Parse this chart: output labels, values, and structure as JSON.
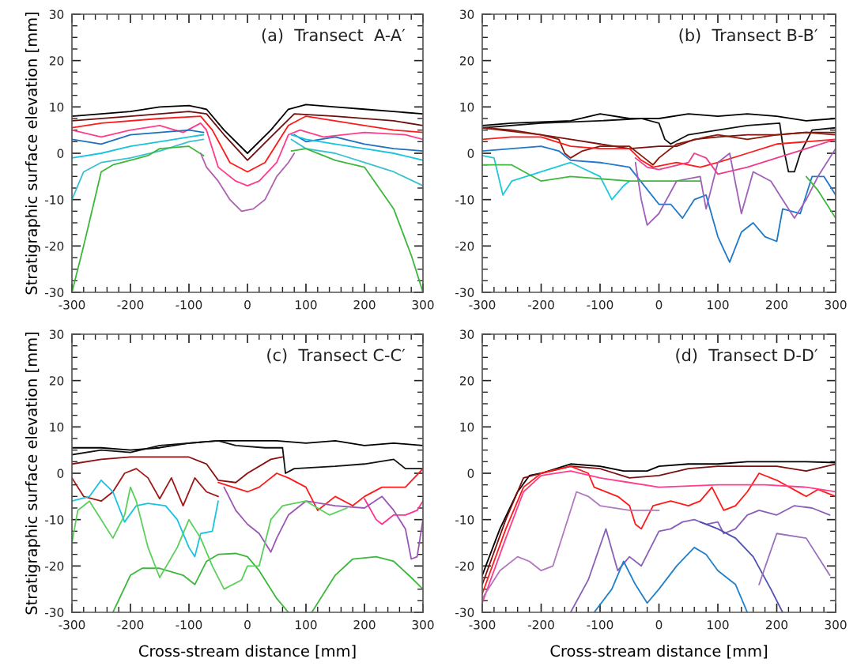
{
  "chart_data": [
    {
      "type": "line",
      "title": "(a)  Transect  A-A′",
      "ylabel": "Stratigraphic surface elevation [mm]",
      "xlim": [
        -300,
        300
      ],
      "ylim": [
        -30,
        30
      ],
      "xticks": [
        -300,
        -200,
        -100,
        0,
        100,
        200,
        300
      ],
      "yticks": [
        -30,
        -20,
        -10,
        0,
        10,
        20,
        30
      ],
      "series": [
        {
          "color": "#000000",
          "x": [
            -300,
            -250,
            -200,
            -150,
            -100,
            -70,
            -40,
            0,
            40,
            70,
            100,
            150,
            200,
            250,
            300
          ],
          "values": [
            8,
            8.5,
            9,
            10,
            10.3,
            9.5,
            5,
            0,
            5,
            9.5,
            10.5,
            10,
            9.5,
            9,
            8.5
          ]
        },
        {
          "color": "#6b0f0f",
          "x": [
            -300,
            -200,
            -100,
            -70,
            -40,
            0,
            40,
            80,
            150,
            250,
            300
          ],
          "values": [
            7,
            8,
            9,
            8.5,
            4,
            -1.5,
            3.5,
            8.5,
            8,
            7,
            6
          ]
        },
        {
          "color": "#ff1a1a",
          "x": [
            -300,
            -250,
            -150,
            -80,
            -60,
            -30,
            0,
            30,
            70,
            100,
            200,
            250,
            300
          ],
          "values": [
            5.5,
            6.5,
            7.5,
            8,
            5,
            -2,
            -4,
            -2,
            6,
            8,
            6,
            5,
            4.5
          ]
        },
        {
          "color": "#ff3d8b",
          "x": [
            -300,
            -250,
            -200,
            -150,
            -110,
            -80,
            -70,
            -50,
            -20,
            0,
            20,
            50,
            70,
            90,
            130,
            200,
            270,
            300
          ],
          "values": [
            5,
            3.5,
            5,
            6,
            4.5,
            6.5,
            5,
            -3,
            -6,
            -7,
            -6,
            -2,
            4,
            5,
            3.5,
            4.5,
            4,
            3
          ]
        },
        {
          "color": "#1f6fbf",
          "x": [
            -300,
            -250,
            -200,
            -150,
            -100,
            -75,
            0,
            80,
            100,
            150,
            200,
            250,
            300
          ],
          "values": [
            3,
            2,
            4,
            4.5,
            5,
            4.5,
            null,
            4,
            2.5,
            3.5,
            2,
            1,
            0.5
          ]
        },
        {
          "color": "#19c3e0",
          "x": [
            -300,
            -250,
            -200,
            -150,
            -100,
            -75,
            0,
            75,
            100,
            150,
            200,
            250,
            300
          ],
          "values": [
            -1,
            0,
            1.5,
            2.5,
            3.5,
            4,
            null,
            4,
            3,
            2,
            1,
            0,
            -1.5
          ]
        },
        {
          "color": "#3cc0d0",
          "x": [
            -300,
            -280,
            -250,
            -200,
            -150,
            -100,
            -75,
            0,
            75,
            100,
            150,
            200,
            250,
            300
          ],
          "values": [
            -10,
            -4,
            -2,
            -1,
            0.5,
            2.5,
            3,
            null,
            3,
            1,
            0,
            -2,
            -4,
            -7
          ]
        },
        {
          "color": "#3cb83c",
          "x": [
            -300,
            -280,
            -250,
            -230,
            -200,
            -170,
            -150,
            -100,
            -75,
            0,
            75,
            100,
            150,
            200,
            250,
            280,
            300
          ],
          "values": [
            -30,
            -20,
            -4,
            -2.5,
            -1.5,
            -0.5,
            1,
            1.5,
            -0.5,
            null,
            0.5,
            1,
            -1.5,
            -3,
            -12,
            -22,
            -30
          ]
        },
        {
          "color": "#b060b0",
          "x": [
            -80,
            -70,
            -50,
            -30,
            -10,
            10,
            30,
            50,
            70,
            80
          ],
          "values": [
            0,
            -3,
            -6,
            -10,
            -12.5,
            -12,
            -10,
            -5,
            -2,
            0
          ]
        }
      ]
    },
    {
      "type": "line",
      "title": "(b)  Transect B-B′",
      "xlim": [
        -300,
        300
      ],
      "ylim": [
        -30,
        30
      ],
      "xticks": [
        -300,
        -200,
        -100,
        0,
        100,
        200,
        300
      ],
      "yticks": [
        -30,
        -20,
        -10,
        0,
        10,
        20,
        30
      ],
      "series": [
        {
          "color": "#000000",
          "x": [
            -300,
            -250,
            -150,
            -100,
            -50,
            0,
            50,
            100,
            150,
            200,
            250,
            300
          ],
          "values": [
            6,
            6.5,
            7,
            8.5,
            7.5,
            7.5,
            8.5,
            8,
            8.5,
            8,
            7,
            7.5
          ]
        },
        {
          "color": "#111111",
          "x": [
            -300,
            -200,
            -100,
            -30,
            0,
            10,
            20,
            50,
            100,
            150,
            205,
            210,
            220,
            230,
            240,
            260,
            300
          ],
          "values": [
            5.5,
            6.5,
            7,
            7.5,
            6.5,
            3,
            2,
            4,
            5,
            6,
            6.5,
            2,
            -4,
            -4,
            0,
            5,
            5.5
          ]
        },
        {
          "color": "#7a1010",
          "x": [
            -300,
            -250,
            -200,
            -150,
            -100,
            -50,
            0,
            30,
            60,
            100,
            150,
            200,
            250,
            300
          ],
          "values": [
            5.5,
            5,
            4,
            3,
            2,
            1,
            1.5,
            1.5,
            3,
            3.5,
            4,
            4,
            4.5,
            4.5
          ]
        },
        {
          "color": "#8b1a0a",
          "x": [
            -300,
            -200,
            -170,
            -160,
            -150,
            -130,
            -100,
            -50,
            -25,
            -10,
            0,
            30,
            80,
            100,
            150,
            200,
            250,
            300
          ],
          "values": [
            5.5,
            4,
            3,
            0,
            -1,
            0.5,
            1.5,
            1.5,
            -1,
            -2.5,
            -1,
            2,
            3.5,
            4,
            3,
            4,
            4.5,
            4
          ]
        },
        {
          "color": "#ff1a1a",
          "x": [
            -300,
            -250,
            -200,
            -150,
            -100,
            -50,
            -30,
            -10,
            30,
            70,
            100,
            150,
            200,
            250,
            300
          ],
          "values": [
            3,
            3.5,
            3.5,
            1.5,
            1,
            1,
            -1.5,
            -3,
            -2,
            -3,
            -2,
            0,
            2,
            2.5,
            3
          ]
        },
        {
          "color": "#f03c8c",
          "x": [
            -40,
            -20,
            0,
            50,
            60,
            80,
            100,
            150,
            200,
            250,
            300
          ],
          "values": [
            -1,
            -3,
            -3.5,
            -2,
            0,
            -1,
            -4.5,
            -3,
            -1,
            1,
            3
          ]
        },
        {
          "color": "#1f78c8",
          "x": [
            -300,
            -250,
            -200,
            -170,
            -150,
            -100,
            -50,
            0,
            20,
            40,
            60,
            80,
            100,
            120,
            140,
            160,
            180,
            200,
            210,
            240,
            260,
            280,
            300
          ],
          "values": [
            0.5,
            1,
            1.5,
            0.5,
            -1.5,
            -2,
            -3,
            -11,
            -11,
            -14,
            -10,
            -9,
            -18,
            -23.5,
            -17,
            -15,
            -18,
            -19,
            -12,
            -13,
            -5,
            -5,
            -9
          ]
        },
        {
          "color": "#1ec8dc",
          "x": [
            -300,
            -280,
            -265,
            -250,
            -200,
            -150,
            -100,
            -80,
            -60,
            -50
          ],
          "values": [
            -0.5,
            -1,
            -9,
            -6,
            -4,
            -2,
            -5,
            -10,
            -7,
            -6
          ]
        },
        {
          "color": "#a060b8",
          "x": [
            -40,
            -30,
            -20,
            0,
            30,
            70,
            80,
            100,
            120,
            140,
            160,
            190,
            210,
            230,
            250,
            270,
            300
          ],
          "values": [
            -2,
            -10,
            -15.5,
            -13,
            -6,
            -5,
            -12,
            -2,
            0,
            -13,
            -4,
            -6,
            -10,
            -14,
            -10,
            -5,
            1
          ]
        },
        {
          "color": "#40b840",
          "x": [
            -300,
            -250,
            -200,
            -150,
            -50,
            0,
            70,
            150,
            250,
            270,
            300
          ],
          "values": [
            -2.5,
            -2.5,
            -6,
            -5,
            -6,
            -6,
            -6,
            null,
            -5,
            -8,
            -14
          ]
        }
      ]
    },
    {
      "type": "line",
      "title": "(c)  Transect C-C′",
      "xlabel": "Cross-stream distance [mm]",
      "ylabel": "Stratigraphic surface elevation [mm]",
      "xlim": [
        -300,
        300
      ],
      "ylim": [
        -30,
        30
      ],
      "xticks": [
        -300,
        -200,
        -100,
        0,
        100,
        200,
        300
      ],
      "yticks": [
        -30,
        -20,
        -10,
        0,
        10,
        20,
        30
      ],
      "series": [
        {
          "color": "#000000",
          "x": [
            -300,
            -250,
            -200,
            -150,
            -100,
            -50,
            0,
            50,
            100,
            150,
            200,
            250,
            300
          ],
          "values": [
            5.5,
            5.5,
            5,
            5.5,
            6.5,
            7,
            7,
            7,
            6.5,
            7,
            6,
            6.5,
            6
          ]
        },
        {
          "color": "#111111",
          "x": [
            -300,
            -250,
            -200,
            -150,
            -100,
            -50,
            -20,
            30,
            60,
            65,
            80,
            150,
            200,
            250,
            270,
            300
          ],
          "values": [
            4,
            5,
            4.5,
            6,
            6.5,
            7,
            6,
            5.5,
            5.5,
            0,
            1,
            1.5,
            2,
            3,
            1,
            1
          ]
        },
        {
          "color": "#8b1010",
          "x": [
            -300,
            -250,
            -200,
            -150,
            -100,
            -70,
            -50,
            -20,
            0,
            40,
            60
          ],
          "values": [
            2,
            3,
            3.5,
            3.5,
            3.5,
            2,
            -1.5,
            -2,
            0,
            3,
            3.5
          ]
        },
        {
          "color": "#a01818",
          "x": [
            -300,
            -280,
            -250,
            -230,
            -210,
            -190,
            -170,
            -150,
            -130,
            -110,
            -90,
            -70,
            -50
          ],
          "values": [
            -1,
            -5,
            -6,
            -4,
            0,
            1,
            -1,
            -5.5,
            -1,
            -7,
            -1,
            -4,
            -5
          ]
        },
        {
          "color": "#ff1a1a",
          "x": [
            -50,
            0,
            20,
            50,
            70,
            100,
            120,
            150,
            180,
            200,
            230,
            270,
            300
          ],
          "values": [
            -2,
            -4,
            -3,
            0,
            -1,
            -3,
            -8,
            -5,
            -7,
            -5,
            -3,
            -3,
            1
          ]
        },
        {
          "color": "#ff3090",
          "x": [
            200,
            220,
            230,
            250,
            270,
            290,
            300
          ],
          "values": [
            -5.5,
            -10,
            -11,
            -9,
            -9,
            -8,
            -6
          ]
        },
        {
          "color": "#19c3e0",
          "x": [
            -300,
            -270,
            -250,
            -230,
            -210,
            -190,
            -170,
            -140,
            -120,
            -100,
            -90,
            -80,
            -60,
            -50
          ],
          "values": [
            -6,
            -5,
            -1.5,
            -4,
            -10.5,
            -7,
            -6.5,
            -7,
            -10,
            -16,
            -18,
            -13,
            -12.5,
            -6
          ]
        },
        {
          "color": "#9c56b4",
          "x": [
            -40,
            -20,
            0,
            20,
            40,
            50,
            70,
            100,
            150,
            200,
            230,
            250,
            270,
            280,
            290,
            300
          ],
          "values": [
            -3,
            -8,
            -11,
            -13,
            -17,
            -14,
            -9,
            -6,
            -7,
            -7.5,
            -5,
            -8,
            -12,
            -18.5,
            -18,
            -10
          ]
        },
        {
          "color": "#3cb83c",
          "x": [
            -230,
            -200,
            -180,
            -150,
            -110,
            -90,
            -70,
            -50,
            -20,
            0,
            20,
            50,
            70
          ],
          "values": [
            -30,
            -22,
            -20.5,
            -20.5,
            -22,
            -24,
            -19,
            -17.5,
            -17.3,
            -18,
            -21,
            -27,
            -30
          ]
        },
        {
          "color": "#3cb83c",
          "x": [
            110,
            150,
            180,
            220,
            250,
            280,
            300
          ],
          "values": [
            -30,
            -22,
            -18.5,
            -18,
            -19,
            -22.5,
            -25
          ]
        },
        {
          "color": "#5ccf5c",
          "x": [
            -300,
            -290,
            -270,
            -250,
            -230,
            -210,
            -200,
            -190,
            -170,
            -150,
            -120,
            -100,
            -80,
            -60,
            -40,
            -10,
            0,
            20,
            40,
            60,
            100,
            140,
            170
          ],
          "values": [
            -15,
            -8,
            -6,
            -10,
            -14,
            -9,
            -3,
            -6,
            -16,
            -22.5,
            -16,
            -10,
            -14,
            -20,
            -25,
            -23,
            -20,
            -20,
            -10,
            -7,
            -6,
            -9,
            -7.5
          ]
        }
      ]
    },
    {
      "type": "line",
      "title": "(d)  Transect D-D′",
      "xlabel": "Cross-stream distance [mm]",
      "xlim": [
        -300,
        300
      ],
      "ylim": [
        -30,
        30
      ],
      "xticks": [
        -300,
        -200,
        -100,
        0,
        100,
        200,
        300
      ],
      "yticks": [
        -30,
        -20,
        -10,
        0,
        10,
        20,
        30
      ],
      "series": [
        {
          "color": "#000000",
          "x": [
            -300,
            -270,
            -240,
            -220,
            -200,
            -150,
            -100,
            -60,
            -20,
            0,
            50,
            100,
            150,
            200,
            250,
            300
          ],
          "values": [
            -22,
            -12,
            -4,
            -0.5,
            0,
            2,
            1.5,
            0.5,
            0.5,
            1.5,
            2,
            2,
            2.5,
            2.5,
            2.5,
            2.3
          ]
        },
        {
          "color": "#7a1010",
          "x": [
            -300,
            -260,
            -230,
            -200,
            -150,
            -100,
            -50,
            0,
            50,
            100,
            200,
            250,
            300
          ],
          "values": [
            -24,
            -10,
            -1,
            0,
            1.5,
            1,
            -1,
            -0.5,
            1,
            1.5,
            1.5,
            0.5,
            2
          ]
        },
        {
          "color": "#ff1a1a",
          "x": [
            -300,
            -260,
            -230,
            -200,
            -150,
            -120,
            -110,
            -70,
            -50,
            -40,
            -30,
            -10,
            20,
            50,
            70,
            90,
            110,
            130,
            150,
            170,
            200,
            250,
            270,
            300
          ],
          "values": [
            -26,
            -12,
            -3,
            0,
            1.5,
            0,
            -3,
            -5,
            -7,
            -11,
            -12,
            -7,
            -6,
            -7,
            -6,
            -3,
            -8,
            -7,
            -4,
            0,
            -1.5,
            -5,
            -3.5,
            -5
          ]
        },
        {
          "color": "#ff3d8b",
          "x": [
            -300,
            -260,
            -230,
            -200,
            -150,
            -100,
            -50,
            0,
            100,
            180,
            250,
            300
          ],
          "values": [
            -28,
            -14,
            -4,
            -0.5,
            0.5,
            -1,
            -2,
            -3,
            -2.5,
            -2.5,
            -3,
            -4
          ]
        },
        {
          "color": "#b078c0",
          "x": [
            -300,
            -270,
            -240,
            -220,
            -200,
            -180,
            -160,
            -140,
            -120,
            -100,
            -50,
            0
          ],
          "values": [
            -27,
            -21,
            -18,
            -19,
            -21,
            -20,
            -12,
            -4,
            -5,
            -7,
            -8,
            -8
          ]
        },
        {
          "color": "#8860b8",
          "x": [
            -150,
            -120,
            -90,
            -70,
            -50,
            -30,
            0,
            20,
            40,
            60,
            80,
            100,
            110,
            130,
            150,
            170,
            200,
            230,
            260,
            290
          ],
          "values": [
            -30,
            -23,
            -12,
            -21,
            -18,
            -20,
            -12.5,
            -12,
            -10.5,
            -10,
            -11,
            -10.5,
            -13,
            -12,
            -9,
            -8,
            -9,
            -7,
            -7.5,
            -9
          ]
        },
        {
          "color": "#2080c8",
          "x": [
            -110,
            -80,
            -60,
            -40,
            -20,
            0,
            30,
            60,
            80,
            100,
            130,
            150
          ],
          "values": [
            -30,
            -25,
            -19,
            -24,
            -28,
            -25,
            -20,
            -16,
            -17.5,
            -21,
            -24,
            -30
          ]
        },
        {
          "color": "#5050b0",
          "x": [
            70,
            100,
            130,
            160,
            190,
            210
          ],
          "values": [
            -10.5,
            -12,
            -14,
            -18,
            -25,
            -30
          ]
        },
        {
          "color": "#9a70c0",
          "x": [
            170,
            200,
            250,
            290
          ],
          "values": [
            -24,
            -13,
            -14,
            -22
          ]
        }
      ]
    }
  ]
}
